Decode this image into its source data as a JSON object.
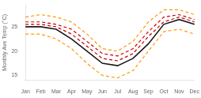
{
  "chart_data": {
    "type": "line",
    "categories": [
      "Jan",
      "Feb",
      "Mar",
      "Apr",
      "May",
      "Jun",
      "Jul",
      "Aug",
      "Sep",
      "Oct",
      "Nov",
      "Dec"
    ],
    "series": [
      {
        "color": "#ff9900",
        "line_style": "dashed",
        "values": [
          23.5,
          23.5,
          22.5,
          20.5,
          17.5,
          15.0,
          14.5,
          16.0,
          20.0,
          24.0,
          24.5,
          23.5
        ]
      },
      {
        "color": "#ff9900",
        "line_style": "dashed",
        "values": [
          27.0,
          27.5,
          27.0,
          26.0,
          23.5,
          20.5,
          20.0,
          22.0,
          26.0,
          28.5,
          28.5,
          27.5
        ]
      },
      {
        "color": "#cc0000",
        "line_style": "dashed",
        "values": [
          25.5,
          25.5,
          25.0,
          23.5,
          21.0,
          18.5,
          18.0,
          19.5,
          23.0,
          26.0,
          27.0,
          26.0
        ]
      },
      {
        "color": "#cc0000",
        "line_style": "dashed",
        "values": [
          26.0,
          26.0,
          25.5,
          24.5,
          22.0,
          19.5,
          19.0,
          20.5,
          24.0,
          27.0,
          27.5,
          26.5
        ]
      },
      {
        "color": "#1a1a1a",
        "line_style": "solid",
        "values": [
          25.0,
          25.0,
          24.5,
          22.5,
          20.0,
          17.5,
          17.0,
          18.5,
          21.5,
          25.5,
          26.5,
          25.5
        ]
      }
    ],
    "ylabel": "Monthly Ave Temp (°C)",
    "ylim": [
      14.0,
      29.5
    ],
    "yticks": [
      15,
      20,
      25
    ],
    "grid": false
  }
}
